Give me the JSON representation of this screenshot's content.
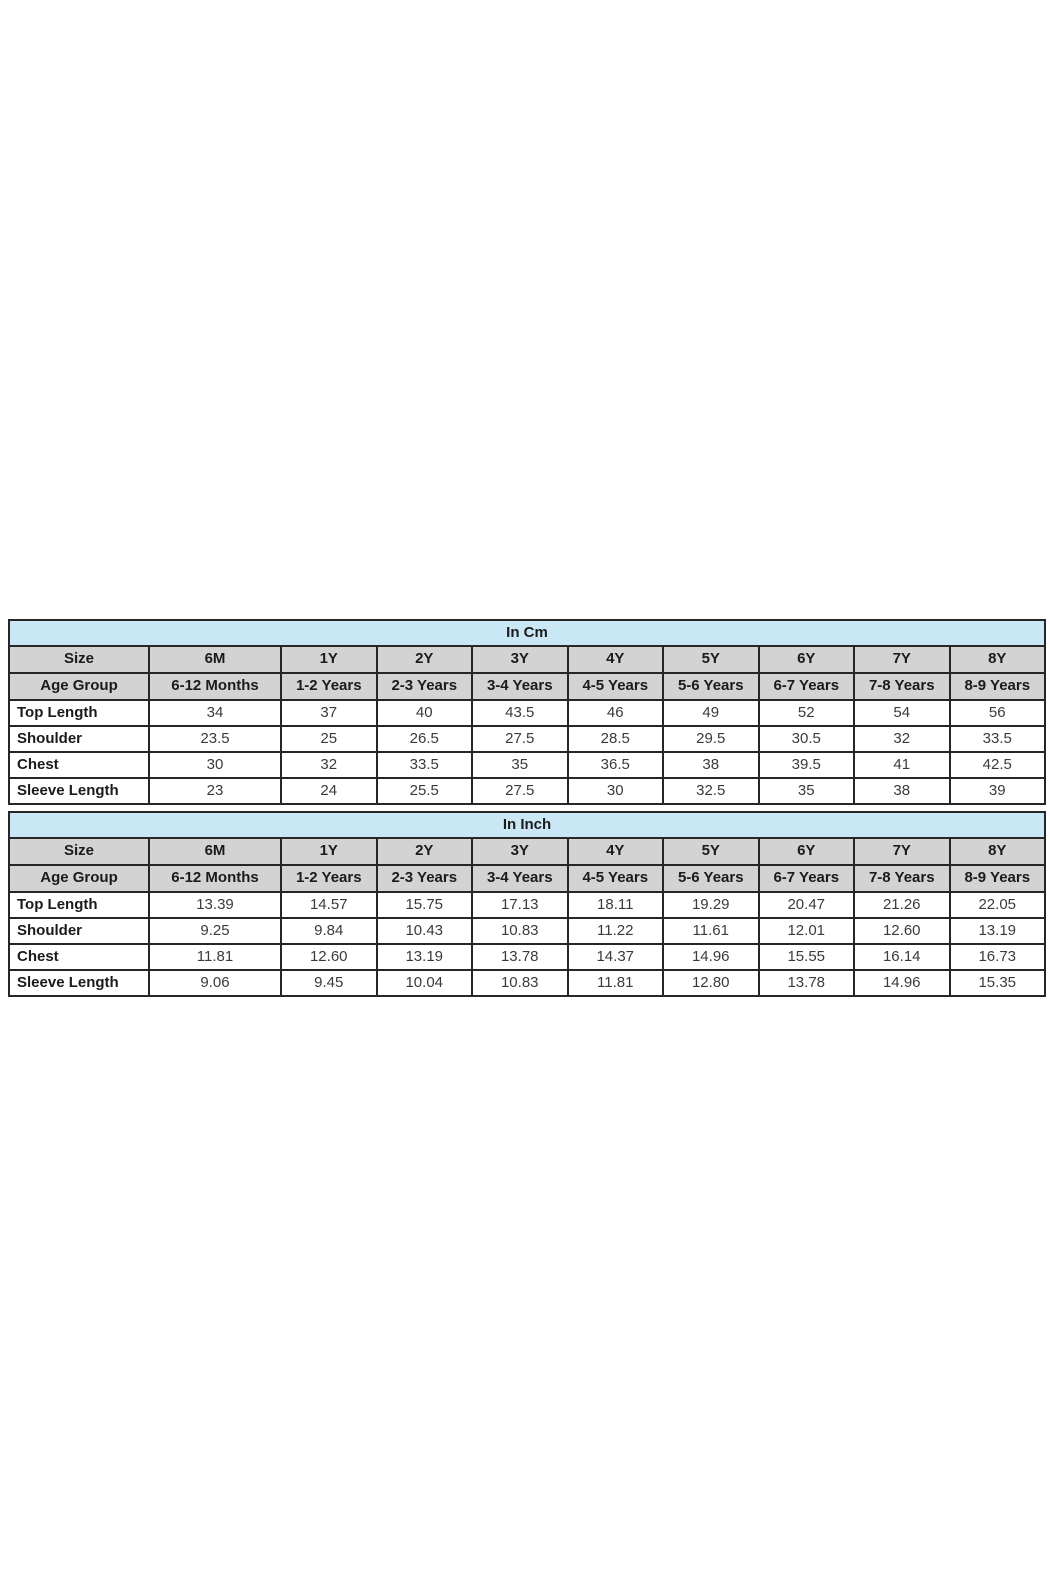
{
  "page": {
    "background": "#ffffff"
  },
  "colors": {
    "title_band": "#c9e7f5",
    "header_gray": "#d3d3d3",
    "border": "#262626",
    "text_dark": "#1b1b1b",
    "text_values": "#3a3a3a"
  },
  "tables": [
    {
      "title": "In Cm",
      "size_label": "Size",
      "age_label": "Age Group",
      "sizes": [
        "6M",
        "1Y",
        "2Y",
        "3Y",
        "4Y",
        "5Y",
        "6Y",
        "7Y",
        "8Y"
      ],
      "age_groups": [
        "6-12 Months",
        "1-2 Years",
        "2-3 Years",
        "3-4 Years",
        "4-5 Years",
        "5-6 Years",
        "6-7 Years",
        "7-8 Years",
        "8-9 Years"
      ],
      "rows": [
        {
          "label": "Top Length",
          "values": [
            "34",
            "37",
            "40",
            "43.5",
            "46",
            "49",
            "52",
            "54",
            "56"
          ]
        },
        {
          "label": "Shoulder",
          "values": [
            "23.5",
            "25",
            "26.5",
            "27.5",
            "28.5",
            "29.5",
            "30.5",
            "32",
            "33.5"
          ]
        },
        {
          "label": "Chest",
          "values": [
            "30",
            "32",
            "33.5",
            "35",
            "36.5",
            "38",
            "39.5",
            "41",
            "42.5"
          ]
        },
        {
          "label": "Sleeve Length",
          "values": [
            "23",
            "24",
            "25.5",
            "27.5",
            "30",
            "32.5",
            "35",
            "38",
            "39"
          ]
        }
      ]
    },
    {
      "title": "In Inch",
      "size_label": "Size",
      "age_label": "Age Group",
      "sizes": [
        "6M",
        "1Y",
        "2Y",
        "3Y",
        "4Y",
        "5Y",
        "6Y",
        "7Y",
        "8Y"
      ],
      "age_groups": [
        "6-12 Months",
        "1-2 Years",
        "2-3 Years",
        "3-4 Years",
        "4-5 Years",
        "5-6 Years",
        "6-7 Years",
        "7-8 Years",
        "8-9 Years"
      ],
      "rows": [
        {
          "label": "Top Length",
          "values": [
            "13.39",
            "14.57",
            "15.75",
            "17.13",
            "18.11",
            "19.29",
            "20.47",
            "21.26",
            "22.05"
          ]
        },
        {
          "label": "Shoulder",
          "values": [
            "9.25",
            "9.84",
            "10.43",
            "10.83",
            "11.22",
            "11.61",
            "12.01",
            "12.60",
            "13.19"
          ]
        },
        {
          "label": "Chest",
          "values": [
            "11.81",
            "12.60",
            "13.19",
            "13.78",
            "14.37",
            "14.96",
            "15.55",
            "16.14",
            "16.73"
          ]
        },
        {
          "label": "Sleeve Length",
          "values": [
            "9.06",
            "9.45",
            "10.04",
            "10.83",
            "11.81",
            "12.80",
            "13.78",
            "14.96",
            "15.35"
          ]
        }
      ]
    }
  ]
}
